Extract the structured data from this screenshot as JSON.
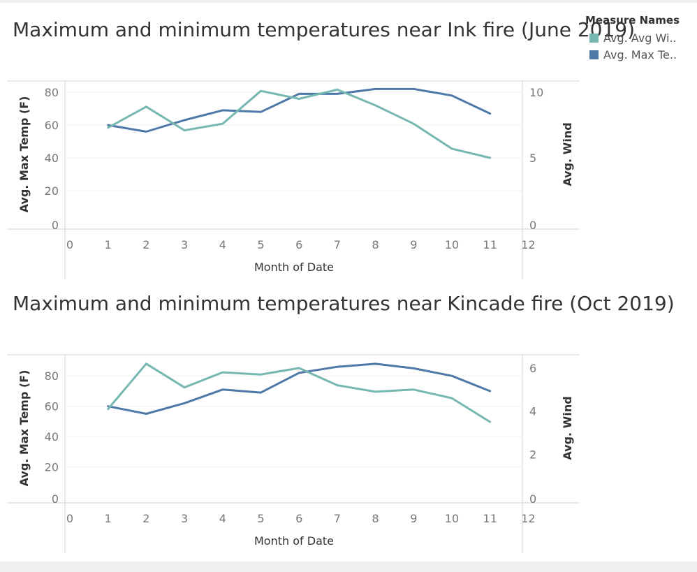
{
  "legend": {
    "title": "Measure Names",
    "items": [
      {
        "label": "Avg. Avg Wi..",
        "color": "#76b7b2"
      },
      {
        "label": "Avg. Max Te..",
        "color": "#4e79a7"
      }
    ]
  },
  "chart_data": [
    {
      "type": "line",
      "title": "Maximum and minimum temperatures near Ink fire (June 2019)",
      "xlabel": "Month of Date",
      "ylabel_left": "Avg. Max Temp (F)",
      "ylabel_right": "Avg. Wind",
      "xlim": [
        0,
        12
      ],
      "x_ticks": [
        0,
        1,
        2,
        3,
        4,
        5,
        6,
        7,
        8,
        9,
        10,
        11,
        12
      ],
      "y_left_ticks": [
        0,
        20,
        40,
        60,
        80
      ],
      "y_left_range": [
        0,
        86
      ],
      "y_right_ticks": [
        0,
        5,
        10
      ],
      "y_right_range": [
        0,
        10.75
      ],
      "grid": true,
      "legend_position": "top-right",
      "series": [
        {
          "name": "Avg. Max Te..",
          "color": "#4e79a7",
          "axis": "left",
          "x": [
            1,
            2,
            3,
            4,
            5,
            6,
            7,
            8,
            9,
            10,
            11
          ],
          "values": [
            60,
            56,
            63,
            69,
            68,
            79,
            79,
            82,
            82,
            78,
            67
          ]
        },
        {
          "name": "Avg. Avg Wi..",
          "color": "#76b7b2",
          "axis": "right",
          "x": [
            1,
            2,
            3,
            4,
            5,
            6,
            7,
            8,
            9,
            10,
            11
          ],
          "values": [
            7.3,
            8.9,
            7.1,
            7.6,
            10.1,
            9.5,
            10.2,
            9.0,
            7.6,
            5.7,
            5.0
          ]
        }
      ]
    },
    {
      "type": "line",
      "title": "Maximum and minimum temperatures near Kincade fire (Oct 2019)",
      "xlabel": "Month of Date",
      "ylabel_left": "Avg. Max Temp (F)",
      "ylabel_right": "Avg. Wind",
      "xlim": [
        0,
        12
      ],
      "x_ticks": [
        0,
        1,
        2,
        3,
        4,
        5,
        6,
        7,
        8,
        9,
        10,
        11,
        12
      ],
      "y_left_ticks": [
        0,
        20,
        40,
        60,
        80
      ],
      "y_left_range": [
        0,
        93
      ],
      "y_right_ticks": [
        0,
        2,
        4,
        6
      ],
      "y_right_range": [
        0,
        6.55
      ],
      "grid": true,
      "legend_position": "top-right",
      "series": [
        {
          "name": "Avg. Max Te..",
          "color": "#4e79a7",
          "axis": "left",
          "x": [
            1,
            2,
            3,
            4,
            5,
            6,
            7,
            8,
            9,
            10,
            11
          ],
          "values": [
            60,
            55,
            62,
            71,
            69,
            82,
            86,
            88,
            85,
            80,
            70
          ]
        },
        {
          "name": "Avg. Avg Wi..",
          "color": "#76b7b2",
          "axis": "right",
          "x": [
            1,
            2,
            3,
            4,
            5,
            6,
            7,
            8,
            9,
            10,
            11
          ],
          "values": [
            4.1,
            6.2,
            5.1,
            5.8,
            5.7,
            6.0,
            5.2,
            4.9,
            5.0,
            4.6,
            3.5
          ]
        }
      ]
    }
  ]
}
